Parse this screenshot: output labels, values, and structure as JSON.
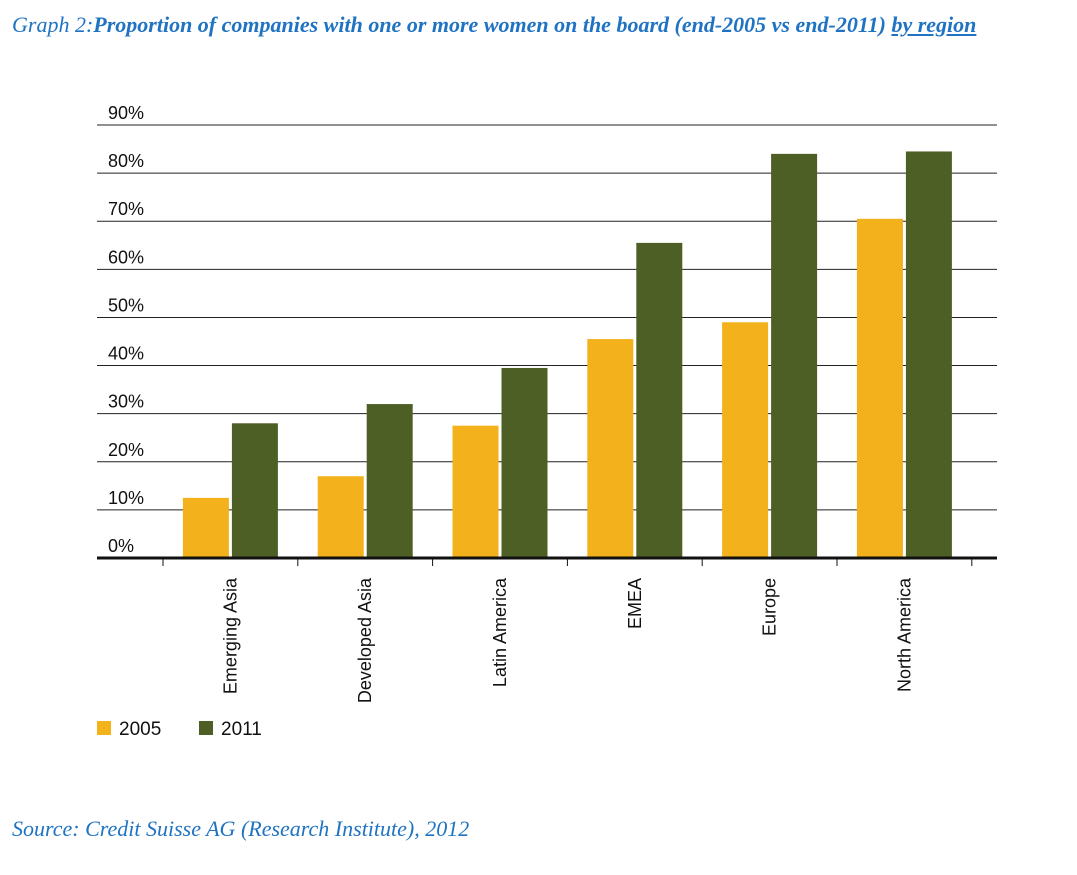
{
  "caption": {
    "prefix": "Graph 2:",
    "main": "Proportion of companies with one or more women on the board (end-2005 vs end-2011) ",
    "underlined": "by region"
  },
  "source": "Source: Credit Suisse AG (Research Institute), 2012",
  "chart_data": {
    "type": "bar",
    "title": "Graph 2:Proportion of companies with one or more women on the board (end-2005 vs end-2011) by region",
    "xlabel": "",
    "ylabel": "",
    "categories": [
      "Emerging Asia",
      "Developed Asia",
      "Latin America",
      "EMEA",
      "Europe",
      "North America"
    ],
    "series": [
      {
        "name": "2005",
        "color": "#f3b11b",
        "values": [
          12.5,
          17,
          27.5,
          45.5,
          49,
          70.5
        ]
      },
      {
        "name": "2011",
        "color": "#4e5f26",
        "values": [
          28,
          32,
          39.5,
          65.5,
          84,
          84.5
        ]
      }
    ],
    "ylim": [
      0,
      90
    ],
    "yticks": [
      "0%",
      "10%",
      "20%",
      "30%",
      "40%",
      "50%",
      "60%",
      "70%",
      "80%",
      "90%"
    ],
    "grid": true,
    "legend": "bottom-left"
  }
}
